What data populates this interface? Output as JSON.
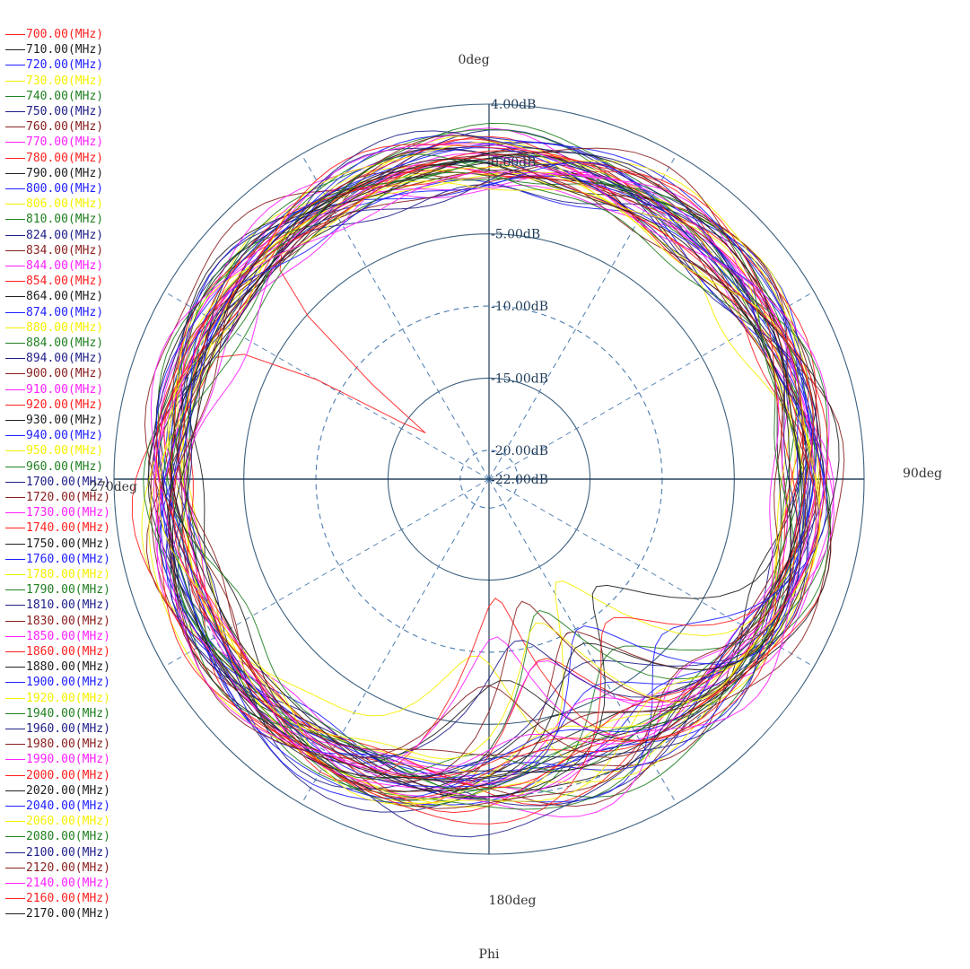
{
  "chart_data": {
    "type": "polar",
    "xlabel": "Phi",
    "angle_labels": {
      "top": "0deg",
      "right": "90deg",
      "bottom": "180deg",
      "left": "270deg"
    },
    "radial_labels": [
      "4.00dB",
      "0.00dB",
      "-5.00dB",
      "-10.00dB",
      "-15.00dB",
      "-20.00dB",
      "-22.00dB"
    ],
    "radial_values": [
      4,
      0,
      -5,
      -10,
      -15,
      -20,
      -22
    ],
    "rlim": [
      -22,
      4
    ],
    "grid": true,
    "legend": "left",
    "series": [
      {
        "name": "700.00(MHz)",
        "color": "#ff2020"
      },
      {
        "name": "710.00(MHz)",
        "color": "#202020"
      },
      {
        "name": "720.00(MHz)",
        "color": "#2020ff"
      },
      {
        "name": "730.00(MHz)",
        "color": "#f5f000"
      },
      {
        "name": "740.00(MHz)",
        "color": "#208020"
      },
      {
        "name": "750.00(MHz)",
        "color": "#20208a"
      },
      {
        "name": "760.00(MHz)",
        "color": "#8a2020"
      },
      {
        "name": "770.00(MHz)",
        "color": "#ff20ff"
      },
      {
        "name": "780.00(MHz)",
        "color": "#ff2020"
      },
      {
        "name": "790.00(MHz)",
        "color": "#202020"
      },
      {
        "name": "800.00(MHz)",
        "color": "#2020ff"
      },
      {
        "name": "806.00(MHz)",
        "color": "#f5f000"
      },
      {
        "name": "810.00(MHz)",
        "color": "#208020"
      },
      {
        "name": "824.00(MHz)",
        "color": "#20208a"
      },
      {
        "name": "834.00(MHz)",
        "color": "#8a2020"
      },
      {
        "name": "844.00(MHz)",
        "color": "#ff20ff"
      },
      {
        "name": "854.00(MHz)",
        "color": "#ff2020"
      },
      {
        "name": "864.00(MHz)",
        "color": "#202020"
      },
      {
        "name": "874.00(MHz)",
        "color": "#2020ff"
      },
      {
        "name": "880.00(MHz)",
        "color": "#f5f000"
      },
      {
        "name": "884.00(MHz)",
        "color": "#208020"
      },
      {
        "name": "894.00(MHz)",
        "color": "#20208a"
      },
      {
        "name": "900.00(MHz)",
        "color": "#8a2020"
      },
      {
        "name": "910.00(MHz)",
        "color": "#ff20ff"
      },
      {
        "name": "920.00(MHz)",
        "color": "#ff2020"
      },
      {
        "name": "930.00(MHz)",
        "color": "#202020"
      },
      {
        "name": "940.00(MHz)",
        "color": "#2020ff"
      },
      {
        "name": "950.00(MHz)",
        "color": "#f5f000"
      },
      {
        "name": "960.00(MHz)",
        "color": "#208020"
      },
      {
        "name": "1700.00(MHz)",
        "color": "#20208a"
      },
      {
        "name": "1720.00(MHz)",
        "color": "#8a2020"
      },
      {
        "name": "1730.00(MHz)",
        "color": "#ff20ff"
      },
      {
        "name": "1740.00(MHz)",
        "color": "#ff2020"
      },
      {
        "name": "1750.00(MHz)",
        "color": "#202020"
      },
      {
        "name": "1760.00(MHz)",
        "color": "#2020ff"
      },
      {
        "name": "1780.00(MHz)",
        "color": "#f5f000"
      },
      {
        "name": "1790.00(MHz)",
        "color": "#208020"
      },
      {
        "name": "1810.00(MHz)",
        "color": "#20208a"
      },
      {
        "name": "1830.00(MHz)",
        "color": "#8a2020"
      },
      {
        "name": "1850.00(MHz)",
        "color": "#ff20ff"
      },
      {
        "name": "1860.00(MHz)",
        "color": "#ff2020"
      },
      {
        "name": "1880.00(MHz)",
        "color": "#202020"
      },
      {
        "name": "1900.00(MHz)",
        "color": "#2020ff"
      },
      {
        "name": "1920.00(MHz)",
        "color": "#f5f000"
      },
      {
        "name": "1940.00(MHz)",
        "color": "#208020"
      },
      {
        "name": "1960.00(MHz)",
        "color": "#20208a"
      },
      {
        "name": "1980.00(MHz)",
        "color": "#8a2020"
      },
      {
        "name": "1990.00(MHz)",
        "color": "#ff20ff"
      },
      {
        "name": "2000.00(MHz)",
        "color": "#ff2020"
      },
      {
        "name": "2020.00(MHz)",
        "color": "#202020"
      },
      {
        "name": "2040.00(MHz)",
        "color": "#2020ff"
      },
      {
        "name": "2060.00(MHz)",
        "color": "#f5f000"
      },
      {
        "name": "2080.00(MHz)",
        "color": "#208020"
      },
      {
        "name": "2100.00(MHz)",
        "color": "#20208a"
      },
      {
        "name": "2120.00(MHz)",
        "color": "#8a2020"
      },
      {
        "name": "2140.00(MHz)",
        "color": "#ff20ff"
      },
      {
        "name": "2160.00(MHz)",
        "color": "#ff2020"
      },
      {
        "name": "2170.00(MHz)",
        "color": "#202020"
      }
    ]
  }
}
